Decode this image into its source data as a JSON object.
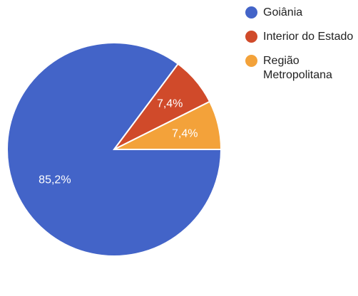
{
  "chart_data": {
    "type": "pie",
    "slices": [
      {
        "label": "Goiânia",
        "value": 85.2,
        "display": "85,2%",
        "color": "#4364c8"
      },
      {
        "label": "Interior do Estado",
        "value": 7.4,
        "display": "7,4%",
        "color": "#d04a2a"
      },
      {
        "label": "Região Metropolitana",
        "value": 7.4,
        "display": "7,4%",
        "color": "#f3a23a"
      }
    ],
    "legend_position": "top-right"
  }
}
